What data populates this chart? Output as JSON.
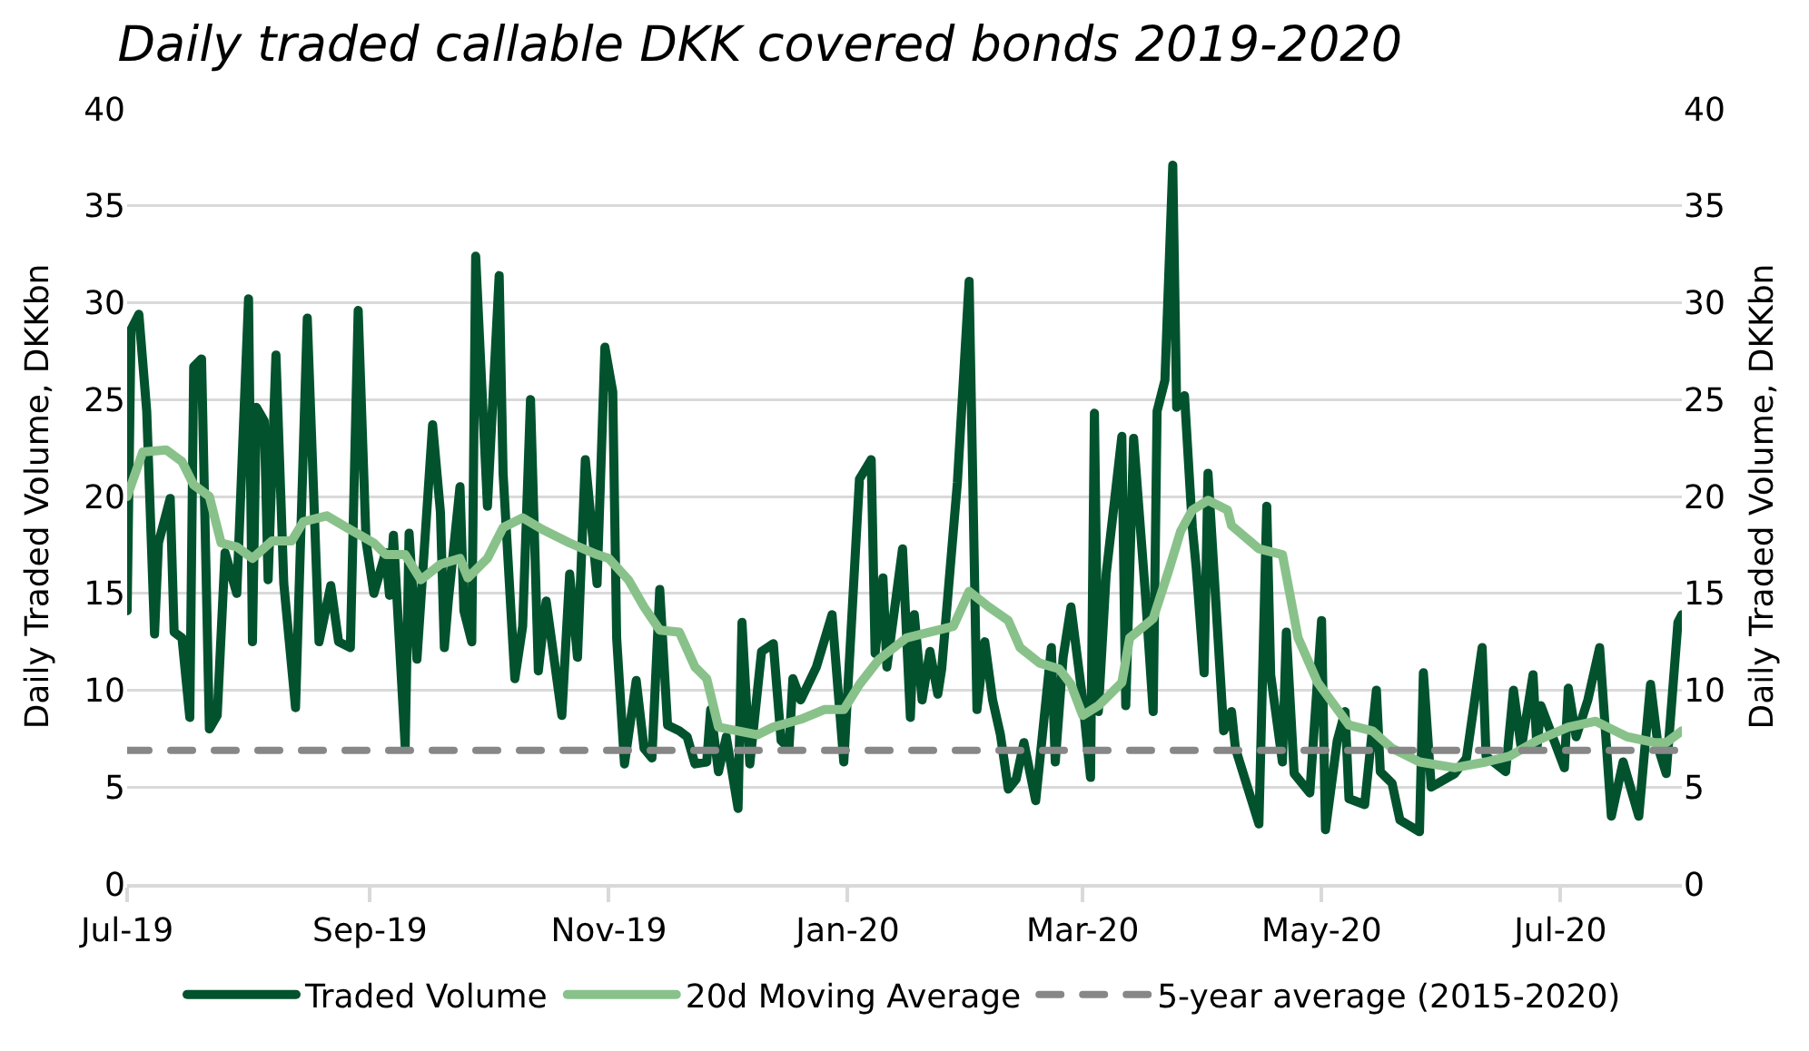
{
  "chart_data": {
    "type": "line",
    "title": "Daily traded callable DKK covered bonds 2019-2020",
    "ylabel": "Daily Traded Volume, DKKbn",
    "y2label": "Daily Traded Volume, DKKbn",
    "xlim": [
      "2019-07-01",
      "2020-08-01"
    ],
    "xticks": [
      {
        "value": "2019-07-01",
        "label": "Jul-19"
      },
      {
        "value": "2019-09-01",
        "label": "Sep-19"
      },
      {
        "value": "2019-11-01",
        "label": "Nov-19"
      },
      {
        "value": "2020-01-01",
        "label": "Jan-20"
      },
      {
        "value": "2020-03-01",
        "label": "Mar-20"
      },
      {
        "value": "2020-05-01",
        "label": "May-20"
      },
      {
        "value": "2020-07-01",
        "label": "Jul-20"
      }
    ],
    "ylim": [
      0,
      40
    ],
    "yticks": [
      0,
      5,
      10,
      15,
      20,
      25,
      30,
      35,
      40
    ],
    "y2lim": [
      0,
      40
    ],
    "y2ticks": [
      0,
      5,
      10,
      15,
      20,
      25,
      30,
      35,
      40
    ],
    "grid": "y",
    "legend": "bottom",
    "line_style": "solid",
    "marker": "none",
    "series": [
      {
        "name": "Traded Volume",
        "color": "#02522e",
        "x": [
          "2019-07-01",
          "2019-07-02",
          "2019-07-04",
          "2019-07-06",
          "2019-07-08",
          "2019-07-09",
          "2019-07-12",
          "2019-07-13",
          "2019-07-15",
          "2019-07-17",
          "2019-07-18",
          "2019-07-20",
          "2019-07-22",
          "2019-07-24",
          "2019-07-26",
          "2019-07-29",
          "2019-08-01",
          "2019-08-02",
          "2019-08-03",
          "2019-08-05",
          "2019-08-06",
          "2019-08-08",
          "2019-08-10",
          "2019-08-13",
          "2019-08-16",
          "2019-08-19",
          "2019-08-22",
          "2019-08-24",
          "2019-08-27",
          "2019-08-29",
          "2019-08-31",
          "2019-09-02",
          "2019-09-05",
          "2019-09-06",
          "2019-09-07",
          "2019-09-10",
          "2019-09-11",
          "2019-09-13",
          "2019-09-17",
          "2019-09-19",
          "2019-09-20",
          "2019-09-21",
          "2019-09-24",
          "2019-09-25",
          "2019-09-27",
          "2019-09-28",
          "2019-10-01",
          "2019-10-04",
          "2019-10-05",
          "2019-10-08",
          "2019-10-10",
          "2019-10-12",
          "2019-10-14",
          "2019-10-16",
          "2019-10-20",
          "2019-10-22",
          "2019-10-24",
          "2019-10-26",
          "2019-10-29",
          "2019-10-31",
          "2019-11-02",
          "2019-11-03",
          "2019-11-05",
          "2019-11-08",
          "2019-11-10",
          "2019-11-12",
          "2019-11-14",
          "2019-11-16",
          "2019-11-19",
          "2019-11-21",
          "2019-11-23",
          "2019-11-26",
          "2019-11-27",
          "2019-11-29",
          "2019-12-01",
          "2019-12-04",
          "2019-12-05",
          "2019-12-07",
          "2019-12-10",
          "2019-12-13",
          "2019-12-15",
          "2019-12-17",
          "2019-12-18",
          "2019-12-20",
          "2019-12-24",
          "2019-12-28",
          "2019-12-31",
          "2020-01-04",
          "2020-01-07",
          "2020-01-08",
          "2020-01-10",
          "2020-01-11",
          "2020-01-15",
          "2020-01-17",
          "2020-01-18",
          "2020-01-20",
          "2020-01-22",
          "2020-01-24",
          "2020-01-25",
          "2020-01-29",
          "2020-02-01",
          "2020-02-03",
          "2020-02-05",
          "2020-02-07",
          "2020-02-09",
          "2020-02-11",
          "2020-02-13",
          "2020-02-15",
          "2020-02-18",
          "2020-02-22",
          "2020-02-23",
          "2020-02-25",
          "2020-02-27",
          "2020-03-01",
          "2020-03-03",
          "2020-03-04",
          "2020-03-05",
          "2020-03-07",
          "2020-03-11",
          "2020-03-12",
          "2020-03-14",
          "2020-03-17",
          "2020-03-19",
          "2020-03-20",
          "2020-03-22",
          "2020-03-24",
          "2020-03-25",
          "2020-03-27",
          "2020-03-29",
          "2020-03-30",
          "2020-04-01",
          "2020-04-02",
          "2020-04-06",
          "2020-04-08",
          "2020-04-09",
          "2020-04-15",
          "2020-04-17",
          "2020-04-18",
          "2020-04-21",
          "2020-04-22",
          "2020-04-24",
          "2020-04-28",
          "2020-05-01",
          "2020-05-02",
          "2020-05-05",
          "2020-05-07",
          "2020-05-08",
          "2020-05-12",
          "2020-05-15",
          "2020-05-16",
          "2020-05-19",
          "2020-05-21",
          "2020-05-26",
          "2020-05-27",
          "2020-05-29",
          "2020-06-04",
          "2020-06-07",
          "2020-06-11",
          "2020-06-12",
          "2020-06-17",
          "2020-06-19",
          "2020-06-21",
          "2020-06-24",
          "2020-06-25",
          "2020-06-26",
          "2020-07-02",
          "2020-07-03",
          "2020-07-05",
          "2020-07-08",
          "2020-07-11",
          "2020-07-14",
          "2020-07-17",
          "2020-07-21",
          "2020-07-24",
          "2020-07-26",
          "2020-07-28",
          "2020-07-31",
          "2020-08-01"
        ],
        "values": [
          14.1,
          28.6,
          29.4,
          24.4,
          12.9,
          17.6,
          19.9,
          13.0,
          12.7,
          8.6,
          26.7,
          27.1,
          8.0,
          8.7,
          17.1,
          15.0,
          30.2,
          12.5,
          24.6,
          23.9,
          15.7,
          27.3,
          15.5,
          9.1,
          29.2,
          12.5,
          15.4,
          12.5,
          12.2,
          29.6,
          17.7,
          15.0,
          17.1,
          14.9,
          18.0,
          7.1,
          18.1,
          11.6,
          23.7,
          19.2,
          12.2,
          14.6,
          20.5,
          14.1,
          12.5,
          32.4,
          19.5,
          31.4,
          21.2,
          10.6,
          13.3,
          25.0,
          11.0,
          14.6,
          8.7,
          16.0,
          11.7,
          21.9,
          15.5,
          27.7,
          25.4,
          12.7,
          6.2,
          10.5,
          7.0,
          6.5,
          15.2,
          8.2,
          7.9,
          7.6,
          6.2,
          6.3,
          9.0,
          5.8,
          7.6,
          3.9,
          13.5,
          6.2,
          12.0,
          12.4,
          7.4,
          7.0,
          10.6,
          9.5,
          11.2,
          13.9,
          6.3,
          20.9,
          21.9,
          11.9,
          15.8,
          11.2,
          17.3,
          8.6,
          13.9,
          9.5,
          12.0,
          9.8,
          11.1,
          20.7,
          31.1,
          9.0,
          12.5,
          9.5,
          7.7,
          4.9,
          5.4,
          7.3,
          4.3,
          12.2,
          6.3,
          11.7,
          14.3,
          9.5,
          5.5,
          24.3,
          8.9,
          16.0,
          23.1,
          9.2,
          23.0,
          15.0,
          8.9,
          24.4,
          26.0,
          37.1,
          24.6,
          25.2,
          18.4,
          16.3,
          10.9,
          21.2,
          7.9,
          8.9,
          7.0,
          3.1,
          19.5,
          10.8,
          6.3,
          13.0,
          5.7,
          4.7,
          13.6,
          2.8,
          7.4,
          8.9,
          4.4,
          4.1,
          10.0,
          5.8,
          5.2,
          3.3,
          2.7,
          10.9,
          5.0,
          5.7,
          6.5,
          12.2,
          6.6,
          5.8,
          10.0,
          7.0,
          10.8,
          7.0,
          9.2,
          6.0,
          10.1,
          7.6,
          9.5,
          12.2,
          3.5,
          6.3,
          3.5,
          10.3,
          7.0,
          5.7,
          13.5,
          13.9
        ]
      },
      {
        "name": "20d Moving Average",
        "color": "#88c28a",
        "x": [
          "2019-07-01",
          "2019-07-05",
          "2019-07-11",
          "2019-07-15",
          "2019-07-18",
          "2019-07-22",
          "2019-07-25",
          "2019-07-29",
          "2019-08-02",
          "2019-08-07",
          "2019-08-12",
          "2019-08-15",
          "2019-08-21",
          "2019-08-26",
          "2019-09-02",
          "2019-09-05",
          "2019-09-10",
          "2019-09-14",
          "2019-09-19",
          "2019-09-24",
          "2019-09-26",
          "2019-10-01",
          "2019-10-05",
          "2019-10-10",
          "2019-10-15",
          "2019-10-22",
          "2019-10-29",
          "2019-11-01",
          "2019-11-06",
          "2019-11-10",
          "2019-11-14",
          "2019-11-19",
          "2019-11-23",
          "2019-11-26",
          "2019-11-29",
          "2019-12-04",
          "2019-12-09",
          "2019-12-13",
          "2019-12-20",
          "2019-12-26",
          "2019-12-31",
          "2020-01-04",
          "2020-01-09",
          "2020-01-16",
          "2020-01-22",
          "2020-01-28",
          "2020-02-01",
          "2020-02-06",
          "2020-02-11",
          "2020-02-14",
          "2020-02-19",
          "2020-02-24",
          "2020-02-27",
          "2020-03-01",
          "2020-03-05",
          "2020-03-11",
          "2020-03-13",
          "2020-03-19",
          "2020-03-23",
          "2020-03-26",
          "2020-03-29",
          "2020-04-02",
          "2020-04-07",
          "2020-04-08",
          "2020-04-15",
          "2020-04-21",
          "2020-04-25",
          "2020-04-30",
          "2020-05-08",
          "2020-05-14",
          "2020-05-19",
          "2020-05-26",
          "2020-06-04",
          "2020-06-12",
          "2020-06-18",
          "2020-06-25",
          "2020-07-03",
          "2020-07-10",
          "2020-07-18",
          "2020-07-25",
          "2020-07-28",
          "2020-08-01"
        ],
        "values": [
          20.0,
          22.3,
          22.4,
          21.8,
          20.6,
          20.0,
          17.6,
          17.4,
          16.8,
          17.7,
          17.7,
          18.7,
          19.0,
          18.4,
          17.6,
          17.0,
          17.0,
          15.7,
          16.5,
          16.8,
          15.8,
          16.8,
          18.4,
          18.9,
          18.3,
          17.6,
          17.0,
          16.8,
          15.7,
          14.3,
          13.1,
          13.0,
          11.2,
          10.6,
          8.1,
          7.9,
          7.7,
          8.1,
          8.5,
          9.0,
          9.0,
          10.3,
          11.6,
          12.7,
          13.0,
          13.3,
          15.1,
          14.3,
          13.6,
          12.2,
          11.4,
          11.1,
          10.3,
          8.7,
          9.2,
          10.4,
          12.7,
          13.7,
          16.2,
          18.2,
          19.3,
          19.8,
          19.3,
          18.5,
          17.3,
          17.0,
          12.7,
          10.4,
          8.2,
          7.9,
          7.0,
          6.3,
          6.0,
          6.3,
          6.6,
          7.4,
          8.1,
          8.4,
          7.6,
          7.3,
          7.3,
          7.9
        ]
      }
    ],
    "ref_lines": [
      {
        "axis": "y",
        "value": 6.9,
        "label": "5-year average (2015-2020)",
        "color": "#878787",
        "line_style": "dashed"
      }
    ]
  }
}
